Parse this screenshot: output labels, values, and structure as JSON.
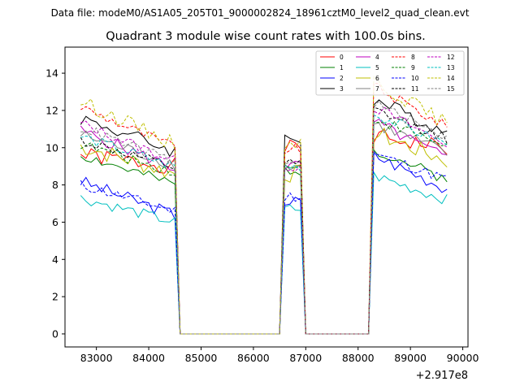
{
  "figure": {
    "suptitle": "Data file: modeM0/AS1A05_205T01_9000002824_18961cztM0_level2_quad_clean.evt",
    "title": "Quadrant 3 module wise count rates with 100.0s bins.",
    "offset_label": "+2.917e8"
  },
  "chart_data": {
    "type": "line",
    "title": "Quadrant 3 module wise count rates with 100.0s bins.",
    "xlabel": "",
    "ylabel": "",
    "x_offset": 291700000,
    "xlim": [
      82400,
      90100
    ],
    "ylim": [
      -0.7,
      15.4
    ],
    "xticks": [
      83000,
      84000,
      85000,
      86000,
      87000,
      88000,
      89000,
      90000
    ],
    "xtick_labels": [
      "83000",
      "84000",
      "85000",
      "86000",
      "87000",
      "88000",
      "89000",
      "90000"
    ],
    "yticks": [
      0,
      2,
      4,
      6,
      8,
      10,
      12,
      14
    ],
    "ytick_labels": [
      "0",
      "2",
      "4",
      "6",
      "8",
      "10",
      "12",
      "14"
    ],
    "legend_position": "top-right",
    "legend_columns": 4,
    "grid": false,
    "segments": [
      {
        "start": 82700,
        "end": 84500
      },
      {
        "start": 86600,
        "end": 86900
      },
      {
        "start": 88300,
        "end": 89700
      }
    ],
    "series": [
      {
        "name": "0",
        "color": "#ff0000",
        "dash": "solid",
        "levels": [
          9.6,
          10.0,
          10.6
        ],
        "slope": 0.6,
        "wiggle": 0.45
      },
      {
        "name": "1",
        "color": "#008000",
        "dash": "solid",
        "levels": [
          9.6,
          8.8,
          9.9
        ],
        "slope": 1.6,
        "wiggle": 0.3
      },
      {
        "name": "2",
        "color": "#0000ff",
        "dash": "solid",
        "levels": [
          8.2,
          7.1,
          9.6
        ],
        "slope": 1.8,
        "wiggle": 0.35
      },
      {
        "name": "3",
        "color": "#000000",
        "dash": "solid",
        "levels": [
          11.6,
          10.5,
          12.6
        ],
        "slope": 1.8,
        "wiggle": 0.4
      },
      {
        "name": "4",
        "color": "#bf00bf",
        "dash": "solid",
        "levels": [
          10.9,
          9.0,
          11.4
        ],
        "slope": 2.0,
        "wiggle": 0.35
      },
      {
        "name": "5",
        "color": "#00bfbf",
        "dash": "solid",
        "levels": [
          7.3,
          6.7,
          8.5
        ],
        "slope": 1.3,
        "wiggle": 0.3
      },
      {
        "name": "6",
        "color": "#bfbf00",
        "dash": "solid",
        "levels": [
          10.1,
          8.6,
          10.8
        ],
        "slope": 1.5,
        "wiggle": 0.5
      },
      {
        "name": "7",
        "color": "#808080",
        "dash": "solid",
        "levels": [
          10.7,
          9.0,
          11.3
        ],
        "slope": 1.6,
        "wiggle": 0.35
      },
      {
        "name": "8",
        "color": "#ff0000",
        "dash": "dashed",
        "levels": [
          12.2,
          9.9,
          13.3
        ],
        "slope": 2.2,
        "wiggle": 0.3
      },
      {
        "name": "9",
        "color": "#008000",
        "dash": "dashed",
        "levels": [
          10.2,
          8.9,
          11.6
        ],
        "slope": 1.5,
        "wiggle": 0.3
      },
      {
        "name": "10",
        "color": "#0000ff",
        "dash": "dashed",
        "levels": [
          8.0,
          7.4,
          9.7
        ],
        "slope": 1.4,
        "wiggle": 0.3
      },
      {
        "name": "11",
        "color": "#000000",
        "dash": "dashed",
        "levels": [
          10.4,
          9.1,
          12.0
        ],
        "slope": 1.5,
        "wiggle": 0.3
      },
      {
        "name": "12",
        "color": "#bf00bf",
        "dash": "dashed",
        "levels": [
          11.3,
          9.0,
          12.2
        ],
        "slope": 2.0,
        "wiggle": 0.3
      },
      {
        "name": "13",
        "color": "#00bfbf",
        "dash": "dashed",
        "levels": [
          10.6,
          9.0,
          11.8
        ],
        "slope": 1.6,
        "wiggle": 0.3
      },
      {
        "name": "14",
        "color": "#bfbf00",
        "dash": "dashed",
        "levels": [
          12.5,
          10.3,
          13.6
        ],
        "slope": 2.3,
        "wiggle": 0.4
      },
      {
        "name": "15",
        "color": "#808080",
        "dash": "dashed",
        "levels": [
          11.1,
          9.1,
          12.4
        ],
        "slope": 1.9,
        "wiggle": 0.3
      }
    ]
  }
}
